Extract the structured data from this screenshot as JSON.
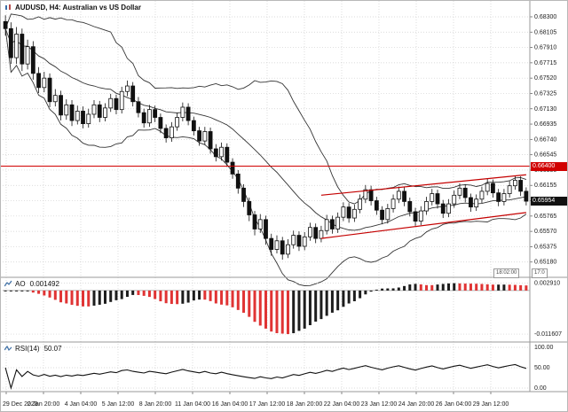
{
  "window": {
    "title": "AUDUSD, H4: Australian vs US Dollar"
  },
  "colors": {
    "bull": "#ffffff",
    "bear": "#111111",
    "outline": "#111111",
    "band": "#333333",
    "level": "#d10000",
    "trend": "#c40000",
    "ao_up": "#1d1d1d",
    "ao_down": "#e03434",
    "grid": "#cfcfcf",
    "axis_text": "#1c1c1c",
    "separator": "#9a9a9a"
  },
  "chart_data": {
    "type": "candlestick",
    "title": "AUDUSD, H4: Australian vs US Dollar",
    "symbol": "AUDUSD",
    "timeframe": "H4",
    "y_range": [
      0.65098,
      0.68435
    ],
    "y_labels": [
      "0.68300",
      "0.68105",
      "0.67910",
      "0.67715",
      "0.67520",
      "0.67325",
      "0.67130",
      "0.66935",
      "0.66740",
      "0.66545",
      "0.66350",
      "0.66155",
      "0.65960",
      "0.65765",
      "0.65570",
      "0.65375",
      "0.65180"
    ],
    "x_labels": [
      "29 Dec 2023",
      "2 Jan 20:00",
      "4 Jan 04:00",
      "5 Jan 12:00",
      "8 Jan 20:00",
      "11 Jan 04:00",
      "16 Jan 04:00",
      "17 Jan 12:00",
      "18 Jan 20:00",
      "22 Jan 04:00",
      "23 Jan 12:00",
      "24 Jan 20:00",
      "26 Jan 04:00",
      "29 Jan 12:00"
    ],
    "grid": true,
    "candles": [
      [
        0.6824,
        0.6832,
        0.6806,
        0.6815
      ],
      [
        0.6815,
        0.6823,
        0.677,
        0.6778
      ],
      [
        0.6778,
        0.6817,
        0.677,
        0.6808
      ],
      [
        0.6808,
        0.6815,
        0.6761,
        0.677
      ],
      [
        0.677,
        0.6801,
        0.6763,
        0.6792
      ],
      [
        0.6792,
        0.6799,
        0.675,
        0.6758
      ],
      [
        0.6758,
        0.6766,
        0.6733,
        0.674
      ],
      [
        0.674,
        0.676,
        0.6734,
        0.6752
      ],
      [
        0.6752,
        0.6758,
        0.6715,
        0.6722
      ],
      [
        0.6722,
        0.6738,
        0.6716,
        0.673
      ],
      [
        0.673,
        0.6736,
        0.6698,
        0.6705
      ],
      [
        0.6705,
        0.6725,
        0.6699,
        0.6718
      ],
      [
        0.6718,
        0.6724,
        0.6691,
        0.6698
      ],
      [
        0.6698,
        0.6717,
        0.6693,
        0.671
      ],
      [
        0.671,
        0.6716,
        0.6688,
        0.6694
      ],
      [
        0.6694,
        0.6713,
        0.6689,
        0.6706
      ],
      [
        0.6706,
        0.6724,
        0.6701,
        0.6718
      ],
      [
        0.6718,
        0.6723,
        0.6696,
        0.6702
      ],
      [
        0.6702,
        0.672,
        0.6697,
        0.6714
      ],
      [
        0.6714,
        0.6732,
        0.6709,
        0.6726
      ],
      [
        0.6726,
        0.6731,
        0.6706,
        0.6712
      ],
      [
        0.6712,
        0.6741,
        0.6707,
        0.6735
      ],
      [
        0.6735,
        0.6749,
        0.6729,
        0.6742
      ],
      [
        0.6742,
        0.6747,
        0.6716,
        0.6722
      ],
      [
        0.6722,
        0.6728,
        0.6702,
        0.6708
      ],
      [
        0.6708,
        0.6713,
        0.6689,
        0.6695
      ],
      [
        0.6695,
        0.6718,
        0.669,
        0.6712
      ],
      [
        0.6712,
        0.6717,
        0.6696,
        0.6702
      ],
      [
        0.6702,
        0.6707,
        0.6682,
        0.6688
      ],
      [
        0.6688,
        0.6693,
        0.667,
        0.6676
      ],
      [
        0.6676,
        0.6696,
        0.6671,
        0.669
      ],
      [
        0.669,
        0.6708,
        0.6685,
        0.6702
      ],
      [
        0.6702,
        0.6721,
        0.6697,
        0.6715
      ],
      [
        0.6715,
        0.672,
        0.6692,
        0.6698
      ],
      [
        0.6698,
        0.6703,
        0.6679,
        0.6685
      ],
      [
        0.6685,
        0.669,
        0.6666,
        0.6672
      ],
      [
        0.6672,
        0.669,
        0.6667,
        0.6684
      ],
      [
        0.6684,
        0.6689,
        0.6656,
        0.6662
      ],
      [
        0.6662,
        0.6668,
        0.6646,
        0.6652
      ],
      [
        0.6652,
        0.667,
        0.6647,
        0.6664
      ],
      [
        0.6664,
        0.6669,
        0.6639,
        0.6645
      ],
      [
        0.6645,
        0.665,
        0.6624,
        0.663
      ],
      [
        0.663,
        0.6635,
        0.6605,
        0.6612
      ],
      [
        0.6612,
        0.6617,
        0.6588,
        0.6595
      ],
      [
        0.6595,
        0.66,
        0.657,
        0.6578
      ],
      [
        0.6578,
        0.6583,
        0.6552,
        0.656
      ],
      [
        0.656,
        0.6579,
        0.6555,
        0.6572
      ],
      [
        0.6572,
        0.6577,
        0.654,
        0.6548
      ],
      [
        0.6548,
        0.6554,
        0.6526,
        0.6534
      ],
      [
        0.6534,
        0.6552,
        0.6529,
        0.6545
      ],
      [
        0.6545,
        0.655,
        0.6521,
        0.6528
      ],
      [
        0.6528,
        0.6547,
        0.6523,
        0.654
      ],
      [
        0.654,
        0.6558,
        0.6535,
        0.6552
      ],
      [
        0.6552,
        0.6557,
        0.6532,
        0.6538
      ],
      [
        0.6538,
        0.6556,
        0.6533,
        0.655
      ],
      [
        0.655,
        0.6568,
        0.6545,
        0.6562
      ],
      [
        0.6562,
        0.6567,
        0.6542,
        0.6548
      ],
      [
        0.6548,
        0.6564,
        0.6543,
        0.6558
      ],
      [
        0.6558,
        0.6578,
        0.6553,
        0.6572
      ],
      [
        0.6572,
        0.6577,
        0.6554,
        0.656
      ],
      [
        0.656,
        0.6581,
        0.6555,
        0.6575
      ],
      [
        0.6575,
        0.6594,
        0.657,
        0.6588
      ],
      [
        0.6588,
        0.6593,
        0.6568,
        0.6574
      ],
      [
        0.6574,
        0.6591,
        0.6569,
        0.6585
      ],
      [
        0.6585,
        0.6604,
        0.658,
        0.6598
      ],
      [
        0.6598,
        0.6616,
        0.6593,
        0.661
      ],
      [
        0.661,
        0.6615,
        0.659,
        0.6596
      ],
      [
        0.6596,
        0.6601,
        0.6578,
        0.6584
      ],
      [
        0.6584,
        0.6589,
        0.6566,
        0.6572
      ],
      [
        0.6572,
        0.6592,
        0.6567,
        0.6586
      ],
      [
        0.6586,
        0.6604,
        0.6581,
        0.6598
      ],
      [
        0.6598,
        0.6614,
        0.6593,
        0.6608
      ],
      [
        0.6608,
        0.6613,
        0.6589,
        0.6595
      ],
      [
        0.6595,
        0.66,
        0.6576,
        0.6582
      ],
      [
        0.6582,
        0.6587,
        0.6564,
        0.657
      ],
      [
        0.657,
        0.6589,
        0.6565,
        0.6583
      ],
      [
        0.6583,
        0.6601,
        0.6578,
        0.6595
      ],
      [
        0.6595,
        0.6611,
        0.659,
        0.6605
      ],
      [
        0.6605,
        0.661,
        0.6586,
        0.6592
      ],
      [
        0.6592,
        0.6597,
        0.6574,
        0.658
      ],
      [
        0.658,
        0.6598,
        0.6575,
        0.6592
      ],
      [
        0.6592,
        0.6609,
        0.6587,
        0.6603
      ],
      [
        0.6603,
        0.6618,
        0.6598,
        0.6612
      ],
      [
        0.6612,
        0.6617,
        0.6594,
        0.66
      ],
      [
        0.66,
        0.6605,
        0.6582,
        0.6588
      ],
      [
        0.6588,
        0.6604,
        0.6583,
        0.6598
      ],
      [
        0.6598,
        0.6614,
        0.6593,
        0.6608
      ],
      [
        0.6608,
        0.6624,
        0.6603,
        0.6618
      ],
      [
        0.6618,
        0.6623,
        0.66,
        0.6606
      ],
      [
        0.6606,
        0.6611,
        0.6589,
        0.6595
      ],
      [
        0.6595,
        0.6611,
        0.659,
        0.6605
      ],
      [
        0.6605,
        0.6621,
        0.66,
        0.6615
      ],
      [
        0.6615,
        0.6628,
        0.661,
        0.6622
      ],
      [
        0.6622,
        0.6627,
        0.6602,
        0.6608
      ],
      [
        0.6608,
        0.6613,
        0.659,
        0.65954
      ]
    ],
    "bollinger": {
      "period": 20,
      "deviation": 2
    },
    "level": {
      "price": 0.664,
      "label": "0.66400"
    },
    "current": {
      "price": 0.65954,
      "label": "0.65954"
    },
    "trendlines": [
      {
        "x1": 57,
        "p1": 0.6548,
        "x2": 94,
        "p2": 0.6581
      },
      {
        "x1": 57,
        "p1": 0.6603,
        "x2": 94,
        "p2": 0.6629
      }
    ],
    "ao": {
      "label": "AO",
      "value": "0.001492",
      "fast": 5,
      "slow": 34,
      "axis_labels": [
        "0.002910",
        "-0.011607"
      ]
    },
    "rsi": {
      "label": "RSI(14)",
      "value": "50.07",
      "period": 14,
      "axis_labels": [
        "100.00",
        "50.00",
        "0.00"
      ]
    },
    "timer": {
      "elapsed": "18:02:00",
      "remaining": "17:0"
    }
  }
}
